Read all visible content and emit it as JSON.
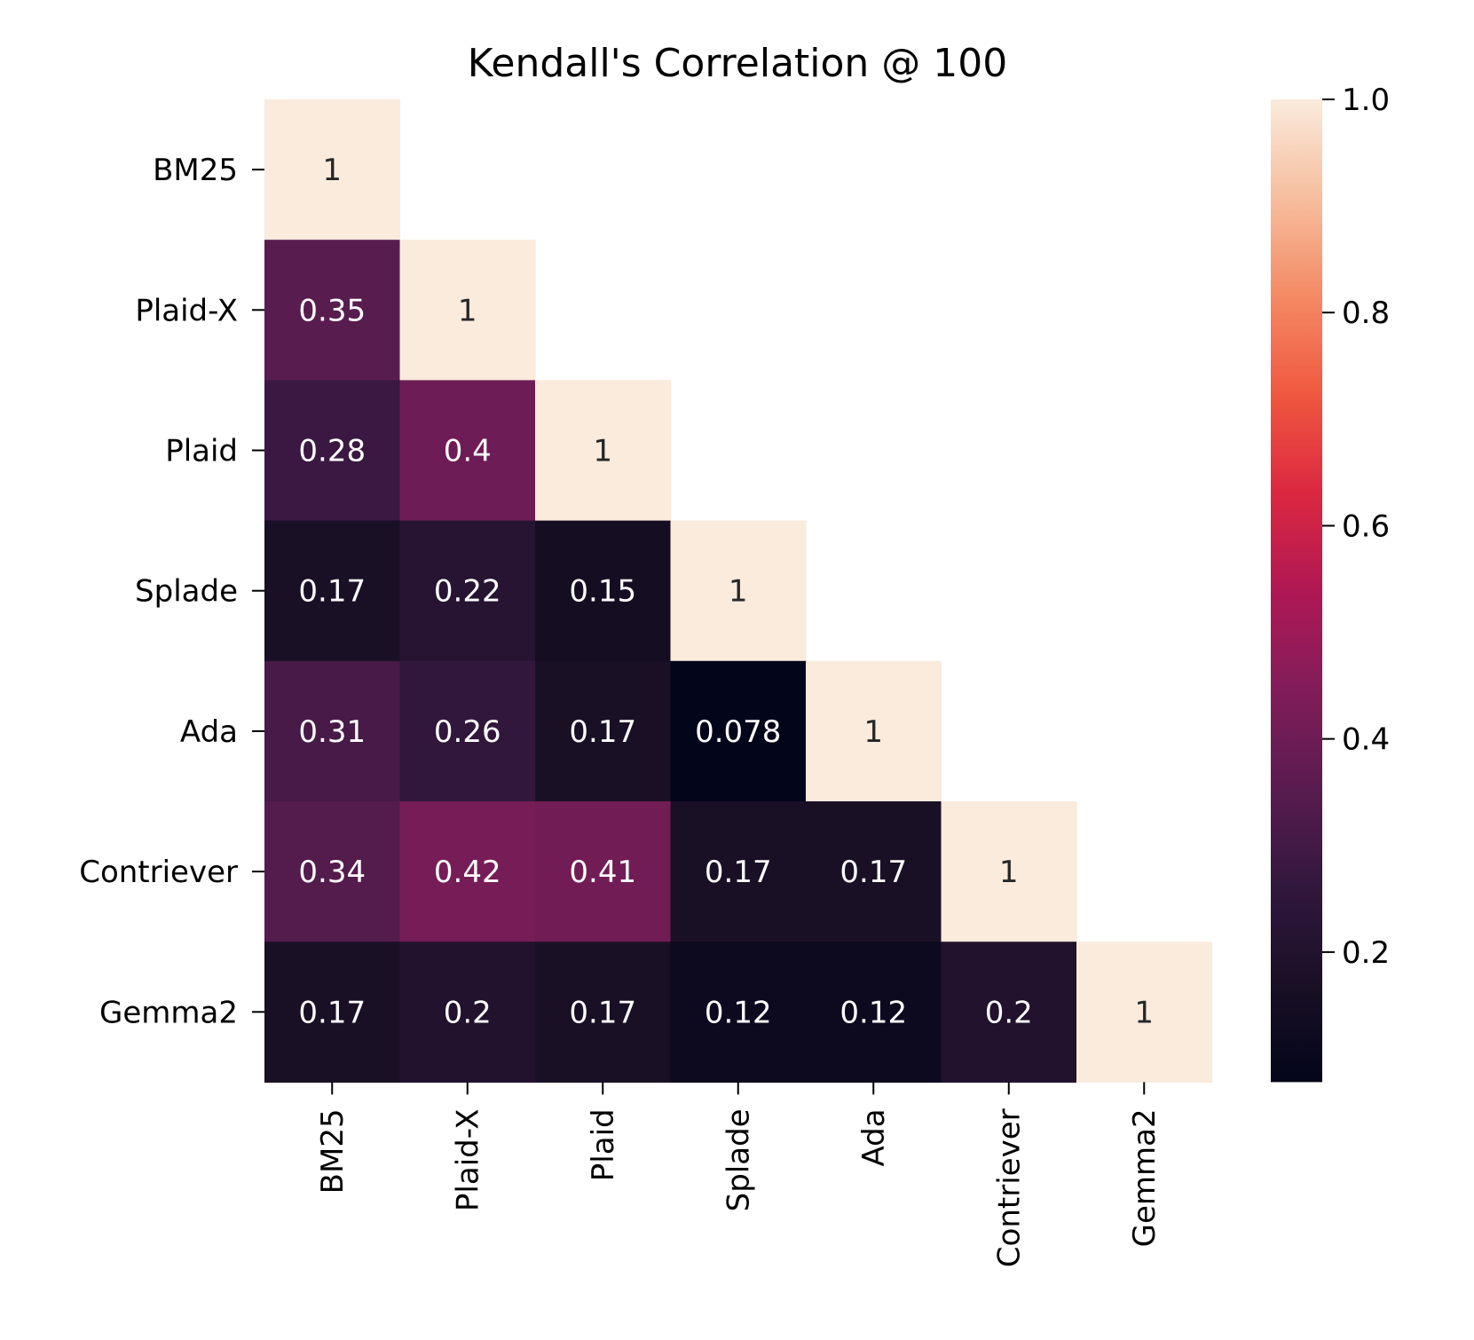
{
  "chart_data": {
    "type": "heatmap",
    "title": "Kendall's Correlation @ 100",
    "xlabel": "",
    "ylabel": "",
    "x_categories": [
      "BM25",
      "Plaid-X",
      "Plaid",
      "Splade",
      "Ada",
      "Contriever",
      "Gemma2"
    ],
    "y_categories": [
      "BM25",
      "Plaid-X",
      "Plaid",
      "Splade",
      "Ada",
      "Contriever",
      "Gemma2"
    ],
    "mask": "upper-triangle",
    "values": [
      [
        1,
        null,
        null,
        null,
        null,
        null,
        null
      ],
      [
        0.35,
        1,
        null,
        null,
        null,
        null,
        null
      ],
      [
        0.28,
        0.4,
        1,
        null,
        null,
        null,
        null
      ],
      [
        0.17,
        0.22,
        0.15,
        1,
        null,
        null,
        null
      ],
      [
        0.31,
        0.26,
        0.17,
        0.078,
        1,
        null,
        null
      ],
      [
        0.34,
        0.42,
        0.41,
        0.17,
        0.17,
        1,
        null
      ],
      [
        0.17,
        0.2,
        0.17,
        0.12,
        0.12,
        0.2,
        1
      ]
    ],
    "cell_labels": [
      [
        "1",
        "",
        "",
        "",
        "",
        "",
        ""
      ],
      [
        "0.35",
        "1",
        "",
        "",
        "",
        "",
        ""
      ],
      [
        "0.28",
        "0.4",
        "1",
        "",
        "",
        "",
        ""
      ],
      [
        "0.17",
        "0.22",
        "0.15",
        "1",
        "",
        "",
        ""
      ],
      [
        "0.31",
        "0.26",
        "0.17",
        "0.078",
        "1",
        "",
        ""
      ],
      [
        "0.34",
        "0.42",
        "0.41",
        "0.17",
        "0.17",
        "1",
        ""
      ],
      [
        "0.17",
        "0.2",
        "0.17",
        "0.12",
        "0.12",
        "0.2",
        "1"
      ]
    ],
    "colormap": "rocket",
    "color_range": [
      0.078,
      1.0
    ],
    "colorbar": {
      "ticks": [
        0.2,
        0.4,
        0.6,
        0.8,
        1.0
      ],
      "tick_labels": [
        "0.2",
        "0.4",
        "0.6",
        "0.8",
        "1.0"
      ]
    },
    "x_tick_rotation": 90,
    "grid": false,
    "legend": "none"
  }
}
